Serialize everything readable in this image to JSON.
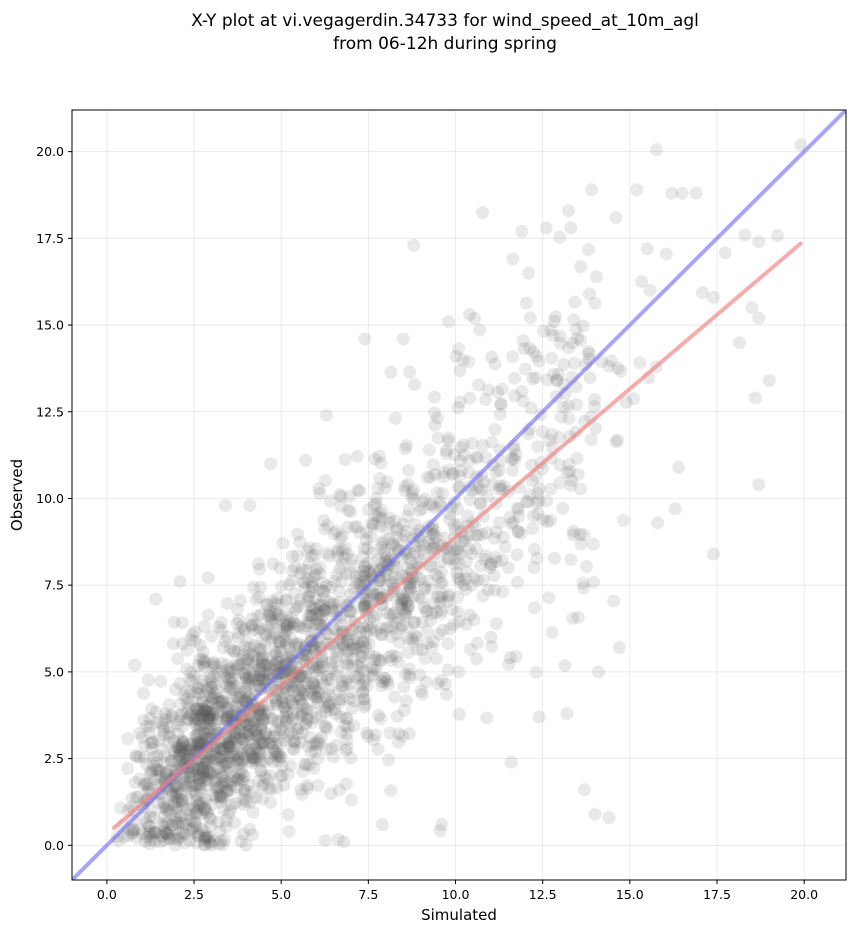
{
  "chart_data": {
    "type": "scatter",
    "title": "X-Y plot at vi.vegagerdin.34733 for wind_speed_at_10m_agl",
    "subtitle": "from 06-12h during spring",
    "xlabel": "Simulated",
    "ylabel": "Observed",
    "xlim": [
      -1.0,
      21.2
    ],
    "ylim": [
      -1.0,
      21.2
    ],
    "xticks": [
      "0.0",
      "2.5",
      "5.0",
      "7.5",
      "10.0",
      "12.5",
      "15.0",
      "17.5",
      "20.0"
    ],
    "yticks": [
      "0.0",
      "2.5",
      "5.0",
      "7.5",
      "10.0",
      "12.5",
      "15.0",
      "17.5",
      "20.0"
    ],
    "grid": true,
    "colors": {
      "points": "#555555",
      "identity_line": "#6b6bf0",
      "fit_line": "#f08080"
    },
    "identity_line": {
      "x": [
        -1.0,
        21.2
      ],
      "y": [
        -1.0,
        21.2
      ]
    },
    "fit_line": {
      "x": [
        0.2,
        19.9
      ],
      "y": [
        0.5,
        17.35
      ]
    },
    "outlier_points": [
      {
        "x": 19.9,
        "y": 20.2
      },
      {
        "x": 13.9,
        "y": 18.9
      },
      {
        "x": 15.2,
        "y": 18.9
      },
      {
        "x": 16.2,
        "y": 18.8
      },
      {
        "x": 16.5,
        "y": 18.8
      },
      {
        "x": 16.9,
        "y": 18.8
      },
      {
        "x": 8.8,
        "y": 17.3
      },
      {
        "x": 14.6,
        "y": 18.1
      },
      {
        "x": 18.3,
        "y": 17.6
      },
      {
        "x": 18.7,
        "y": 17.4
      },
      {
        "x": 17.4,
        "y": 15.8
      },
      {
        "x": 18.5,
        "y": 15.5
      },
      {
        "x": 18.7,
        "y": 15.2
      },
      {
        "x": 19.0,
        "y": 13.4
      },
      {
        "x": 18.6,
        "y": 12.9
      },
      {
        "x": 18.7,
        "y": 10.4
      },
      {
        "x": 17.4,
        "y": 8.4
      },
      {
        "x": 14.0,
        "y": 0.9
      },
      {
        "x": 14.4,
        "y": 0.8
      },
      {
        "x": 13.7,
        "y": 1.6
      },
      {
        "x": 11.6,
        "y": 2.4
      },
      {
        "x": 0.3,
        "y": 0.25
      },
      {
        "x": 0.8,
        "y": 5.2
      },
      {
        "x": 1.4,
        "y": 7.1
      },
      {
        "x": 2.1,
        "y": 7.6
      },
      {
        "x": 4.1,
        "y": 9.8
      },
      {
        "x": 3.4,
        "y": 9.8
      },
      {
        "x": 4.7,
        "y": 11.0
      },
      {
        "x": 5.7,
        "y": 11.1
      },
      {
        "x": 6.3,
        "y": 12.4
      },
      {
        "x": 7.4,
        "y": 14.6
      },
      {
        "x": 8.5,
        "y": 14.6
      },
      {
        "x": 9.8,
        "y": 15.1
      },
      {
        "x": 10.4,
        "y": 15.3
      },
      {
        "x": 12.1,
        "y": 16.5
      },
      {
        "x": 12.6,
        "y": 17.8
      },
      {
        "x": 11.9,
        "y": 17.7
      },
      {
        "x": 13.3,
        "y": 17.8
      },
      {
        "x": 15.5,
        "y": 17.2
      },
      {
        "x": 15.8,
        "y": 9.3
      },
      {
        "x": 16.3,
        "y": 9.7
      },
      {
        "x": 16.4,
        "y": 10.9
      },
      {
        "x": 14.7,
        "y": 5.7
      },
      {
        "x": 14.1,
        "y": 5.0
      },
      {
        "x": 13.2,
        "y": 3.8
      },
      {
        "x": 12.4,
        "y": 3.7
      },
      {
        "x": 9.6,
        "y": 0.6
      },
      {
        "x": 7.9,
        "y": 0.6
      },
      {
        "x": 6.8,
        "y": 0.1
      },
      {
        "x": 4.0,
        "y": 0.0
      }
    ],
    "point_cloud": {
      "count": 2200,
      "x_range": [
        0.2,
        19.9
      ],
      "regression": {
        "slope": 0.855,
        "intercept": 0.35
      },
      "residual_sd": 2.0
    }
  }
}
